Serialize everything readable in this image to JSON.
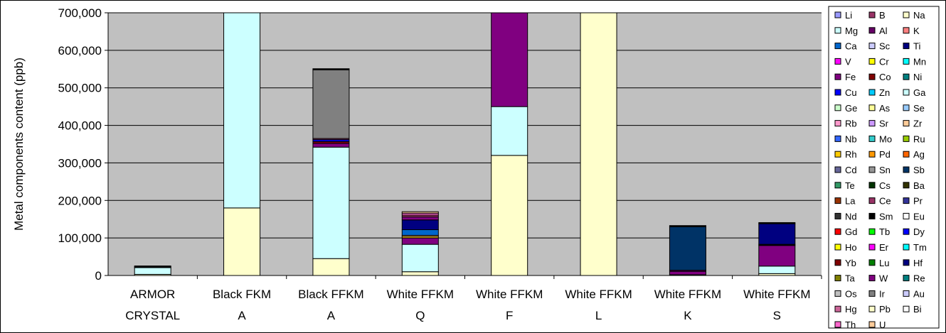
{
  "chart_data": {
    "type": "bar",
    "stacked": true,
    "title": "",
    "ylabel": "Metal components content (ppb)",
    "xlabel": "",
    "ylim": [
      0,
      700000
    ],
    "y_ticks": [
      "0",
      "100,000",
      "200,000",
      "300,000",
      "400,000",
      "500,000",
      "600,000",
      "700,000"
    ],
    "grid": true,
    "plot_background": "#c0c0c0",
    "legend_position": "right",
    "categories": [
      [
        "ARMOR",
        "CRYSTAL"
      ],
      [
        "Black FKM",
        "A"
      ],
      [
        "Black FFKM",
        "A"
      ],
      [
        "White FFKM",
        "Q"
      ],
      [
        "White FFKM",
        "F"
      ],
      [
        "White FFKM",
        "L"
      ],
      [
        "White FFKM",
        "K"
      ],
      [
        "White FFKM",
        "S"
      ]
    ],
    "legend": [
      {
        "name": "Li",
        "color": "#9999ff"
      },
      {
        "name": "B",
        "color": "#993366"
      },
      {
        "name": "Na",
        "color": "#ffffcc"
      },
      {
        "name": "Mg",
        "color": "#ccffff"
      },
      {
        "name": "Al",
        "color": "#660066"
      },
      {
        "name": "K",
        "color": "#ff8080"
      },
      {
        "name": "Ca",
        "color": "#0066cc"
      },
      {
        "name": "Sc",
        "color": "#ccccff"
      },
      {
        "name": "Ti",
        "color": "#000080"
      },
      {
        "name": "V",
        "color": "#ff00ff"
      },
      {
        "name": "Cr",
        "color": "#ffff00"
      },
      {
        "name": "Mn",
        "color": "#00ffff"
      },
      {
        "name": "Fe",
        "color": "#800080"
      },
      {
        "name": "Co",
        "color": "#800000"
      },
      {
        "name": "Ni",
        "color": "#008080"
      },
      {
        "name": "Cu",
        "color": "#0000ff"
      },
      {
        "name": "Zn",
        "color": "#00ccff"
      },
      {
        "name": "Ga",
        "color": "#ccffff"
      },
      {
        "name": "Ge",
        "color": "#ccffcc"
      },
      {
        "name": "As",
        "color": "#ffff99"
      },
      {
        "name": "Se",
        "color": "#99ccff"
      },
      {
        "name": "Rb",
        "color": "#ff99cc"
      },
      {
        "name": "Sr",
        "color": "#cc99ff"
      },
      {
        "name": "Zr",
        "color": "#ffcc99"
      },
      {
        "name": "Nb",
        "color": "#3366ff"
      },
      {
        "name": "Mo",
        "color": "#33cccc"
      },
      {
        "name": "Ru",
        "color": "#99cc00"
      },
      {
        "name": "Rh",
        "color": "#ffcc00"
      },
      {
        "name": "Pd",
        "color": "#ff9900"
      },
      {
        "name": "Ag",
        "color": "#ff6600"
      },
      {
        "name": "Cd",
        "color": "#666699"
      },
      {
        "name": "Sn",
        "color": "#969696"
      },
      {
        "name": "Sb",
        "color": "#003366"
      },
      {
        "name": "Te",
        "color": "#339966"
      },
      {
        "name": "Cs",
        "color": "#003300"
      },
      {
        "name": "Ba",
        "color": "#333300"
      },
      {
        "name": "La",
        "color": "#993300"
      },
      {
        "name": "Ce",
        "color": "#993366"
      },
      {
        "name": "Pr",
        "color": "#333399"
      },
      {
        "name": "Nd",
        "color": "#333333"
      },
      {
        "name": "Sm",
        "color": "#000000"
      },
      {
        "name": "Eu",
        "color": "#ffffff"
      },
      {
        "name": "Gd",
        "color": "#ff0000"
      },
      {
        "name": "Tb",
        "color": "#00ff00"
      },
      {
        "name": "Dy",
        "color": "#0000ff"
      },
      {
        "name": "Ho",
        "color": "#ffff00"
      },
      {
        "name": "Er",
        "color": "#ff00ff"
      },
      {
        "name": "Tm",
        "color": "#00ffff"
      },
      {
        "name": "Yb",
        "color": "#800000"
      },
      {
        "name": "Lu",
        "color": "#008000"
      },
      {
        "name": "Hf",
        "color": "#000080"
      },
      {
        "name": "Ta",
        "color": "#808000"
      },
      {
        "name": "W",
        "color": "#800080"
      },
      {
        "name": "Re",
        "color": "#008080"
      },
      {
        "name": "Os",
        "color": "#c0c0c0"
      },
      {
        "name": "Ir",
        "color": "#808080"
      },
      {
        "name": "Au",
        "color": "#ccccff"
      },
      {
        "name": "Hg",
        "color": "#cc6699"
      },
      {
        "name": "Pb",
        "color": "#ffffcc"
      },
      {
        "name": "Bi",
        "color": "#ffffff"
      },
      {
        "name": "Th",
        "color": "#ff66cc"
      },
      {
        "name": "U",
        "color": "#ffcc99"
      }
    ],
    "bars": [
      {
        "segments": [
          {
            "name": "Na",
            "value": 3000
          },
          {
            "name": "Mg",
            "value": 18000
          },
          {
            "name": "Ca",
            "value": 2000
          },
          {
            "name": "Sm",
            "value": 2500
          }
        ]
      },
      {
        "segments": [
          {
            "name": "Na",
            "value": 180000
          },
          {
            "name": "Mg",
            "value": 700000
          }
        ]
      },
      {
        "segments": [
          {
            "name": "Na",
            "value": 45000
          },
          {
            "name": "Mg",
            "value": 297000
          },
          {
            "name": "Fe",
            "value": 10000
          },
          {
            "name": "Co",
            "value": 5000
          },
          {
            "name": "Cu",
            "value": 5000
          },
          {
            "name": "Ce",
            "value": 3000
          },
          {
            "name": "Ir",
            "value": 183000
          },
          {
            "name": "Sm",
            "value": 3000
          }
        ]
      },
      {
        "segments": [
          {
            "name": "Na",
            "value": 10000
          },
          {
            "name": "Mg",
            "value": 73000
          },
          {
            "name": "Fe",
            "value": 17000
          },
          {
            "name": "Rh",
            "value": 4000
          },
          {
            "name": "Zr",
            "value": 3000
          },
          {
            "name": "Ca",
            "value": 15000
          },
          {
            "name": "Ti",
            "value": 26000
          },
          {
            "name": "Fe",
            "value": 8000
          },
          {
            "name": "Ce",
            "value": 5000
          },
          {
            "name": "Th",
            "value": 5000
          },
          {
            "name": "Zr",
            "value": 4000
          }
        ]
      },
      {
        "segments": [
          {
            "name": "Na",
            "value": 320000
          },
          {
            "name": "Mg",
            "value": 130000
          },
          {
            "name": "Fe",
            "value": 250000
          }
        ]
      },
      {
        "segments": [
          {
            "name": "Na",
            "value": 700000
          }
        ]
      },
      {
        "segments": [
          {
            "name": "Na",
            "value": 2000
          },
          {
            "name": "Fe",
            "value": 9000
          },
          {
            "name": "Al",
            "value": 3000
          },
          {
            "name": "Sb",
            "value": 116000
          },
          {
            "name": "Sm",
            "value": 3000
          }
        ]
      },
      {
        "segments": [
          {
            "name": "Na",
            "value": 5000
          },
          {
            "name": "Mg",
            "value": 20000
          },
          {
            "name": "Fe",
            "value": 55000
          },
          {
            "name": "Sm",
            "value": 3000
          },
          {
            "name": "Ti",
            "value": 55000
          },
          {
            "name": "Sm",
            "value": 3000
          }
        ]
      }
    ]
  }
}
